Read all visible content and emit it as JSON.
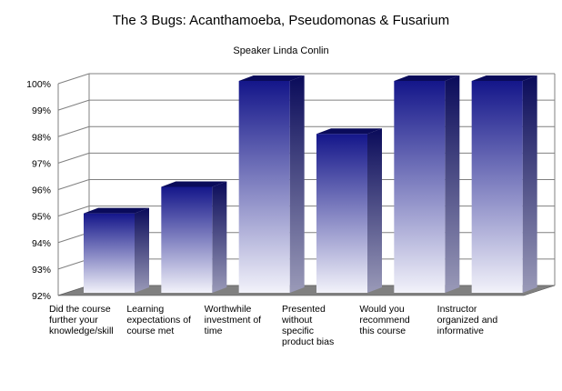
{
  "chart_data": {
    "type": "bar",
    "title": "The 3 Bugs: Acanthamoeba, Pseudomonas & Fusarium",
    "subtitle": "Speaker Linda Conlin",
    "categories": [
      "Did the course\nfurther your\nknowledge/skill",
      "Learning\nexpectations of\ncourse met",
      "Worthwhile\ninvestment of\ntime",
      "Presented\nwithout\nspecific\nproduct bias",
      "Would you\nrecommend\nthis course",
      "Instructor\norganized and\ninformative"
    ],
    "values": [
      95,
      96,
      100,
      98,
      100,
      100
    ],
    "ylim": [
      92,
      100
    ],
    "yticks": [
      "92%",
      "93%",
      "94%",
      "95%",
      "96%",
      "97%",
      "98%",
      "99%",
      "100%"
    ],
    "grid": true,
    "legend": "none",
    "colors": {
      "bar_top": "#14168a",
      "bar_bottom": "#f2f2fa",
      "bar_side": "#0a0b5a",
      "floor": "#808080"
    }
  }
}
